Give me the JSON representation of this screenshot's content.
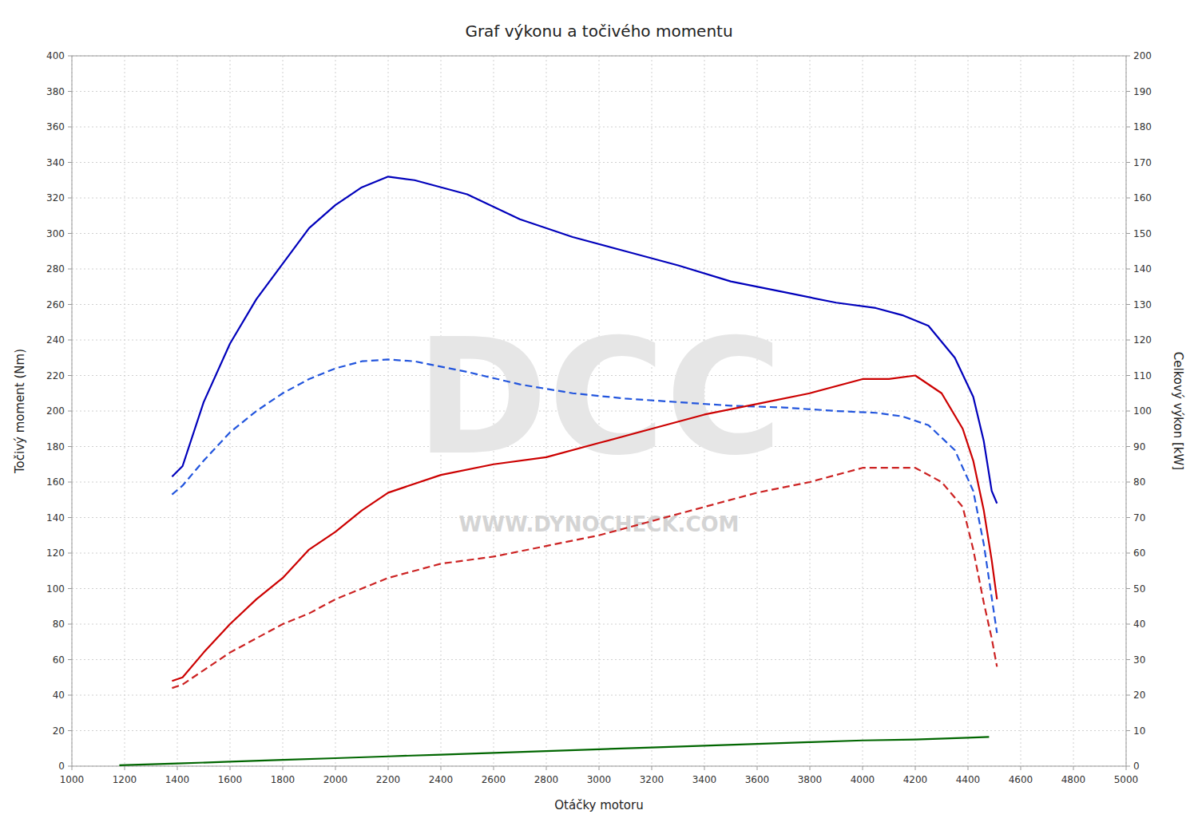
{
  "chart_data": {
    "type": "line",
    "title": "Graf výkonu a točivého momentu",
    "xlabel": "Otáčky motoru",
    "ylabel": "Točivý moment (Nm)",
    "y2label": "Celkový výkon [kW]",
    "xlim": [
      1000,
      5000
    ],
    "ylim": [
      0,
      400
    ],
    "y2lim": [
      0,
      200
    ],
    "xticks": [
      1000,
      1200,
      1400,
      1600,
      1800,
      2000,
      2200,
      2400,
      2600,
      2800,
      3000,
      3200,
      3400,
      3600,
      3800,
      4000,
      4200,
      4400,
      4600,
      4800,
      5000
    ],
    "yticks": [
      0,
      20,
      40,
      60,
      80,
      100,
      120,
      140,
      160,
      180,
      200,
      220,
      240,
      260,
      280,
      300,
      320,
      340,
      360,
      380,
      400
    ],
    "y2ticks": [
      0,
      10,
      20,
      30,
      40,
      50,
      60,
      70,
      80,
      90,
      100,
      110,
      120,
      130,
      140,
      150,
      160,
      170,
      180,
      190,
      200
    ],
    "grid": true,
    "annotations": [
      "DCC",
      "WWW.DYNOCHECK.COM"
    ],
    "series": [
      {
        "color": "#0000bb",
        "line_style": "solid",
        "x": [
          1380,
          1420,
          1500,
          1600,
          1700,
          1800,
          1900,
          2000,
          2100,
          2200,
          2300,
          2500,
          2700,
          2900,
          3100,
          3300,
          3500,
          3700,
          3900,
          4050,
          4150,
          4250,
          4350,
          4420,
          4460,
          4490,
          4510
        ],
        "values": [
          163,
          169,
          205,
          238,
          263,
          283,
          303,
          316,
          326,
          332,
          330,
          322,
          308,
          298,
          290,
          282,
          273,
          267,
          261,
          258,
          254,
          248,
          230,
          208,
          183,
          155,
          148
        ]
      },
      {
        "color": "#2255dd",
        "line_style": "dashed",
        "x": [
          1380,
          1420,
          1500,
          1600,
          1700,
          1800,
          1900,
          2000,
          2100,
          2200,
          2300,
          2500,
          2700,
          2900,
          3100,
          3300,
          3500,
          3700,
          3900,
          4050,
          4150,
          4250,
          4350,
          4420,
          4460,
          4490,
          4510
        ],
        "values": [
          153,
          158,
          172,
          188,
          200,
          210,
          218,
          224,
          228,
          229,
          228,
          222,
          215,
          210,
          207,
          205,
          203,
          202,
          200,
          199,
          197,
          192,
          178,
          155,
          125,
          95,
          75
        ]
      },
      {
        "color": "#cc0000",
        "line_style": "solid",
        "axis": "y2",
        "x": [
          1380,
          1420,
          1500,
          1600,
          1700,
          1800,
          1900,
          2000,
          2100,
          2200,
          2400,
          2600,
          2800,
          3000,
          3200,
          3400,
          3600,
          3800,
          4000,
          4100,
          4200,
          4300,
          4380,
          4420,
          4460,
          4490,
          4510
        ],
        "values": [
          24,
          25,
          32,
          40,
          47,
          53,
          61,
          66,
          72,
          77,
          82,
          85,
          87,
          91,
          95,
          99,
          102,
          105,
          109,
          109,
          110,
          105,
          95,
          86,
          72,
          58,
          47
        ]
      },
      {
        "color": "#cc2222",
        "line_style": "dashed",
        "axis": "y2",
        "x": [
          1380,
          1420,
          1500,
          1600,
          1700,
          1800,
          1900,
          2000,
          2100,
          2200,
          2400,
          2600,
          2800,
          3000,
          3200,
          3400,
          3600,
          3800,
          4000,
          4100,
          4200,
          4300,
          4380,
          4420,
          4460,
          4490,
          4510
        ],
        "values": [
          22,
          23,
          27,
          32,
          36,
          40,
          43,
          47,
          50,
          53,
          57,
          59,
          62,
          65,
          69,
          73,
          77,
          80,
          84,
          84,
          84,
          80,
          73,
          61,
          46,
          36,
          28
        ]
      },
      {
        "color": "#006600",
        "line_style": "solid",
        "x": [
          1180,
          1400,
          1600,
          1800,
          2000,
          2200,
          2400,
          2600,
          2800,
          3000,
          3200,
          3400,
          3600,
          3800,
          4000,
          4200,
          4400,
          4480
        ],
        "values": [
          0.5,
          1.5,
          2.5,
          3.5,
          4.5,
          5.5,
          6.5,
          7.5,
          8.5,
          9.5,
          10.5,
          11.5,
          12.5,
          13.5,
          14.5,
          15.0,
          16.0,
          16.5
        ]
      }
    ]
  }
}
